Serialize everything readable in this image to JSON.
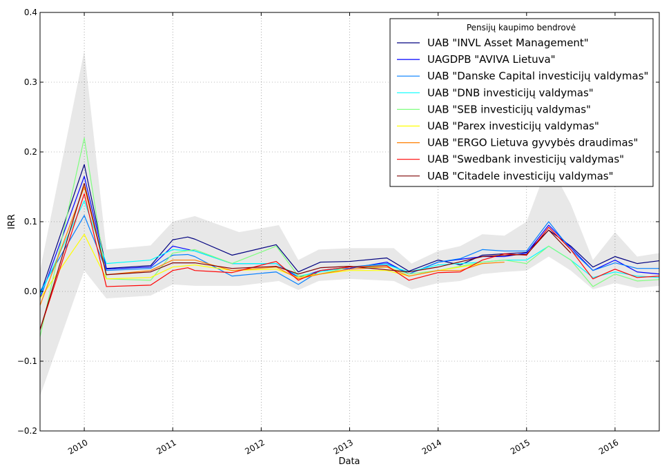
{
  "chart_data": {
    "type": "line",
    "xlabel": "Data",
    "ylabel": "IRR",
    "xlim": [
      2009.5,
      2016.5
    ],
    "ylim": [
      -0.2,
      0.4
    ],
    "xticks": [
      "2010",
      "2011",
      "2012",
      "2013",
      "2014",
      "2015",
      "2016"
    ],
    "yticks": [
      "−0.2",
      "−0.1",
      "0.0",
      "0.1",
      "0.2",
      "0.3",
      "0.4"
    ],
    "grid": true,
    "legend": {
      "title": "Pensijų kaupimo bendrovė",
      "placement": "top-right"
    },
    "band": {
      "color": "#e8e8e8",
      "upper": [
        [
          2009.5,
          0.03
        ],
        [
          2010.0,
          0.345
        ],
        [
          2010.25,
          0.06
        ],
        [
          2010.75,
          0.066
        ],
        [
          2011.0,
          0.1
        ],
        [
          2011.25,
          0.108
        ],
        [
          2011.75,
          0.085
        ],
        [
          2012.2,
          0.095
        ],
        [
          2012.42,
          0.045
        ],
        [
          2012.65,
          0.06
        ],
        [
          2013.0,
          0.062
        ],
        [
          2013.5,
          0.062
        ],
        [
          2013.7,
          0.04
        ],
        [
          2014.0,
          0.058
        ],
        [
          2014.25,
          0.065
        ],
        [
          2014.5,
          0.082
        ],
        [
          2014.75,
          0.08
        ],
        [
          2015.0,
          0.1
        ],
        [
          2015.25,
          0.185
        ],
        [
          2015.5,
          0.125
        ],
        [
          2015.75,
          0.045
        ],
        [
          2016.0,
          0.085
        ],
        [
          2016.25,
          0.05
        ],
        [
          2016.5,
          0.055
        ]
      ],
      "lower": [
        [
          2009.5,
          -0.15
        ],
        [
          2010.0,
          0.03
        ],
        [
          2010.25,
          -0.01
        ],
        [
          2010.75,
          -0.006
        ],
        [
          2011.0,
          0.01
        ],
        [
          2011.25,
          0.008
        ],
        [
          2011.75,
          0.008
        ],
        [
          2012.2,
          0.015
        ],
        [
          2012.42,
          0.002
        ],
        [
          2012.65,
          0.015
        ],
        [
          2013.0,
          0.018
        ],
        [
          2013.5,
          0.015
        ],
        [
          2013.7,
          0.003
        ],
        [
          2014.0,
          0.012
        ],
        [
          2014.25,
          0.015
        ],
        [
          2014.5,
          0.025
        ],
        [
          2014.75,
          0.028
        ],
        [
          2015.0,
          0.03
        ],
        [
          2015.25,
          0.05
        ],
        [
          2015.5,
          0.03
        ],
        [
          2015.75,
          0.003
        ],
        [
          2016.0,
          0.012
        ],
        [
          2016.25,
          0.005
        ],
        [
          2016.5,
          0.008
        ]
      ]
    },
    "series": [
      {
        "name": "UAB \"INVL Asset Management\"",
        "color": "#00007f",
        "points": [
          [
            2009.5,
            -0.005
          ],
          [
            2010.0,
            0.182
          ],
          [
            2010.25,
            0.033
          ],
          [
            2010.75,
            0.037
          ],
          [
            2011.0,
            0.074
          ],
          [
            2011.17,
            0.078
          ],
          [
            2011.25,
            0.075
          ],
          [
            2011.67,
            0.052
          ],
          [
            2012.17,
            0.067
          ],
          [
            2012.42,
            0.028
          ],
          [
            2012.67,
            0.042
          ],
          [
            2013.0,
            0.043
          ],
          [
            2013.42,
            0.048
          ],
          [
            2013.67,
            0.029
          ],
          [
            2014.0,
            0.045
          ],
          [
            2014.25,
            0.038
          ],
          [
            2014.5,
            0.052
          ],
          [
            2014.75,
            0.054
          ],
          [
            2015.0,
            0.056
          ],
          [
            2015.25,
            0.088
          ],
          [
            2015.5,
            0.065
          ],
          [
            2015.75,
            0.035
          ],
          [
            2016.0,
            0.05
          ],
          [
            2016.25,
            0.04
          ],
          [
            2016.5,
            0.044
          ]
        ]
      },
      {
        "name": "UAGDPB \"AVIVA Lietuva\"",
        "color": "#0000ff",
        "points": [
          [
            2009.5,
            -0.01
          ],
          [
            2010.0,
            0.165
          ],
          [
            2010.25,
            0.032
          ],
          [
            2010.75,
            0.035
          ],
          [
            2011.0,
            0.065
          ],
          [
            2011.25,
            0.058
          ],
          [
            2011.67,
            0.04
          ],
          [
            2012.17,
            0.04
          ],
          [
            2012.42,
            0.02
          ],
          [
            2012.67,
            0.03
          ],
          [
            2013.0,
            0.033
          ],
          [
            2013.42,
            0.042
          ],
          [
            2013.67,
            0.025
          ],
          [
            2014.0,
            0.042
          ],
          [
            2014.5,
            0.05
          ],
          [
            2014.75,
            0.05
          ],
          [
            2015.0,
            0.055
          ],
          [
            2015.25,
            0.095
          ],
          [
            2015.5,
            0.063
          ],
          [
            2015.75,
            0.03
          ],
          [
            2016.0,
            0.045
          ],
          [
            2016.25,
            0.028
          ],
          [
            2016.5,
            0.025
          ]
        ]
      },
      {
        "name": "UAB \"Danske Capital investicijų valdymas\"",
        "color": "#007fff",
        "points": [
          [
            2009.5,
            0.0
          ],
          [
            2010.0,
            0.109
          ],
          [
            2010.25,
            0.03
          ],
          [
            2010.75,
            0.033
          ],
          [
            2011.0,
            0.052
          ],
          [
            2011.17,
            0.053
          ],
          [
            2011.25,
            0.05
          ],
          [
            2011.67,
            0.022
          ],
          [
            2012.17,
            0.028
          ],
          [
            2012.42,
            0.01
          ],
          [
            2012.67,
            0.03
          ],
          [
            2013.0,
            0.035
          ],
          [
            2013.42,
            0.04
          ],
          [
            2013.67,
            0.025
          ],
          [
            2014.0,
            0.042
          ],
          [
            2014.25,
            0.047
          ],
          [
            2014.5,
            0.06
          ],
          [
            2014.75,
            0.058
          ],
          [
            2015.0,
            0.058
          ],
          [
            2015.25,
            0.1
          ],
          [
            2015.5,
            0.06
          ],
          [
            2015.75,
            0.03
          ],
          [
            2016.0,
            0.041
          ],
          [
            2016.25,
            0.033
          ],
          [
            2016.5,
            0.033
          ]
        ]
      },
      {
        "name": "UAB \"DNB investicijų valdymas\"",
        "color": "#00ffff",
        "points": [
          [
            2009.5,
            -0.005
          ],
          [
            2010.0,
            0.13
          ],
          [
            2010.25,
            0.04
          ],
          [
            2010.75,
            0.045
          ],
          [
            2011.0,
            0.06
          ],
          [
            2011.25,
            0.058
          ],
          [
            2011.67,
            0.04
          ],
          [
            2012.17,
            0.04
          ],
          [
            2012.42,
            0.022
          ],
          [
            2012.67,
            0.028
          ],
          [
            2013.0,
            0.035
          ],
          [
            2013.42,
            0.038
          ],
          [
            2013.67,
            0.028
          ],
          [
            2014.0,
            0.038
          ],
          [
            2014.5,
            0.042
          ],
          [
            2014.75,
            0.045
          ],
          [
            2015.0,
            0.045
          ],
          [
            2015.25,
            0.065
          ],
          [
            2015.5,
            0.045
          ],
          [
            2015.75,
            0.02
          ],
          [
            2016.0,
            0.028
          ],
          [
            2016.25,
            0.022
          ],
          [
            2016.5,
            0.02
          ]
        ]
      },
      {
        "name": "UAB \"SEB investicijų valdymas\"",
        "color": "#7fff7f",
        "points": [
          [
            2009.5,
            -0.065
          ],
          [
            2010.0,
            0.22
          ],
          [
            2010.25,
            0.018
          ],
          [
            2010.75,
            0.016
          ],
          [
            2011.0,
            0.055
          ],
          [
            2011.25,
            0.06
          ],
          [
            2011.67,
            0.04
          ],
          [
            2012.17,
            0.065
          ],
          [
            2012.42,
            0.022
          ],
          [
            2012.67,
            0.025
          ],
          [
            2013.0,
            0.035
          ],
          [
            2013.42,
            0.035
          ],
          [
            2013.67,
            0.025
          ],
          [
            2014.0,
            0.03
          ],
          [
            2014.5,
            0.042
          ],
          [
            2014.75,
            0.045
          ],
          [
            2015.0,
            0.04
          ],
          [
            2015.25,
            0.065
          ],
          [
            2015.5,
            0.045
          ],
          [
            2015.75,
            0.007
          ],
          [
            2016.0,
            0.025
          ],
          [
            2016.25,
            0.015
          ],
          [
            2016.5,
            0.017
          ]
        ]
      },
      {
        "name": "UAB \"Parex investicijų valdymas\"",
        "color": "#ffff00",
        "points": [
          [
            2009.5,
            -0.01
          ],
          [
            2010.0,
            0.082
          ],
          [
            2010.25,
            0.018
          ],
          [
            2010.75,
            0.02
          ],
          [
            2011.0,
            0.035
          ],
          [
            2011.25,
            0.038
          ],
          [
            2011.67,
            0.03
          ],
          [
            2012.17,
            0.032
          ],
          [
            2012.42,
            0.02
          ],
          [
            2012.67,
            0.025
          ],
          [
            2013.0,
            0.03
          ],
          [
            2013.42,
            0.03
          ],
          [
            2013.67,
            0.022
          ],
          [
            2014.0,
            0.03
          ],
          [
            2014.5,
            0.04
          ]
        ]
      },
      {
        "name": "UAB \"ERGO Lietuva gyvybės draudimas\"",
        "color": "#ff7f00",
        "points": [
          [
            2009.5,
            -0.02
          ],
          [
            2010.0,
            0.15
          ],
          [
            2010.25,
            0.024
          ],
          [
            2010.75,
            0.03
          ],
          [
            2011.0,
            0.045
          ],
          [
            2011.25,
            0.045
          ],
          [
            2011.67,
            0.03
          ],
          [
            2012.17,
            0.035
          ],
          [
            2012.42,
            0.018
          ],
          [
            2012.67,
            0.025
          ],
          [
            2013.0,
            0.032
          ],
          [
            2013.42,
            0.035
          ],
          [
            2013.67,
            0.022
          ],
          [
            2014.0,
            0.03
          ],
          [
            2014.25,
            0.03
          ],
          [
            2014.5,
            0.04
          ],
          [
            2014.75,
            0.042
          ]
        ]
      },
      {
        "name": "UAB \"Swedbank investicijų valdymas\"",
        "color": "#ff0000",
        "points": [
          [
            2009.5,
            -0.055
          ],
          [
            2010.0,
            0.14
          ],
          [
            2010.25,
            0.007
          ],
          [
            2010.75,
            0.009
          ],
          [
            2011.0,
            0.03
          ],
          [
            2011.17,
            0.034
          ],
          [
            2011.25,
            0.03
          ],
          [
            2011.67,
            0.027
          ],
          [
            2012.17,
            0.043
          ],
          [
            2012.42,
            0.016
          ],
          [
            2012.67,
            0.03
          ],
          [
            2013.0,
            0.035
          ],
          [
            2013.42,
            0.037
          ],
          [
            2013.67,
            0.016
          ],
          [
            2014.0,
            0.027
          ],
          [
            2014.25,
            0.028
          ],
          [
            2014.5,
            0.045
          ],
          [
            2014.75,
            0.054
          ],
          [
            2015.0,
            0.052
          ],
          [
            2015.25,
            0.092
          ],
          [
            2015.5,
            0.06
          ],
          [
            2015.75,
            0.018
          ],
          [
            2016.0,
            0.032
          ],
          [
            2016.25,
            0.02
          ],
          [
            2016.5,
            0.022
          ]
        ]
      },
      {
        "name": "UAB \"Citadele investicijų valdymas\"",
        "color": "#7f0000",
        "points": [
          [
            2009.5,
            -0.055
          ],
          [
            2010.0,
            0.155
          ],
          [
            2010.25,
            0.024
          ],
          [
            2010.75,
            0.028
          ],
          [
            2011.0,
            0.041
          ],
          [
            2011.25,
            0.041
          ],
          [
            2011.67,
            0.033
          ],
          [
            2012.17,
            0.036
          ],
          [
            2012.42,
            0.025
          ],
          [
            2012.67,
            0.034
          ],
          [
            2013.0,
            0.036
          ],
          [
            2013.42,
            0.031
          ],
          [
            2013.67,
            0.028
          ],
          [
            2014.0,
            0.035
          ],
          [
            2014.5,
            0.05
          ],
          [
            2014.75,
            0.052
          ],
          [
            2015.0,
            0.053
          ],
          [
            2015.25,
            0.088
          ],
          [
            2015.5,
            0.055
          ]
        ]
      }
    ]
  }
}
